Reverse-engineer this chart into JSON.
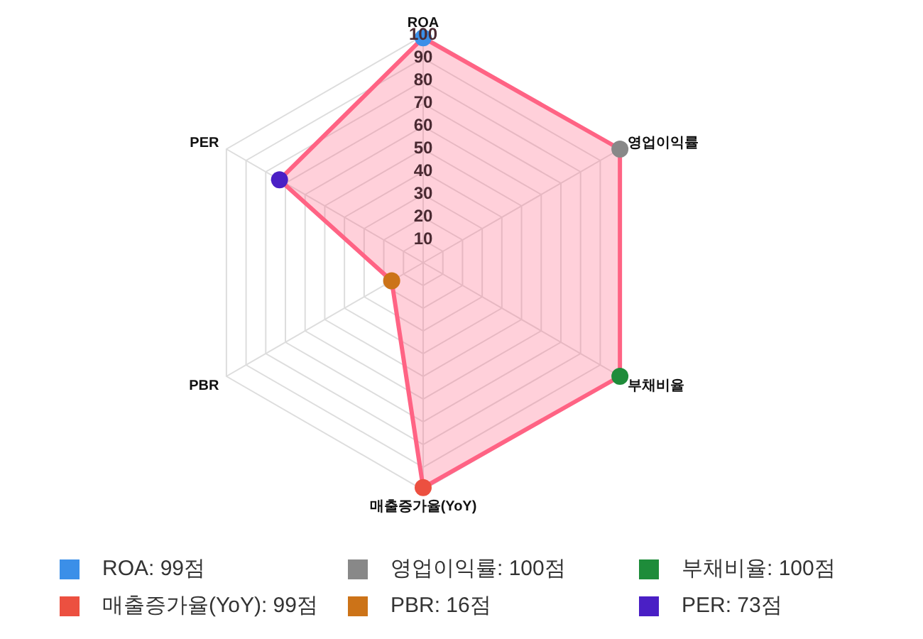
{
  "chart_data": {
    "type": "radar",
    "categories": [
      "ROA",
      "영업이익률",
      "부채비율",
      "매출증가율(YoY)",
      "PBR",
      "PER"
    ],
    "series": [
      {
        "color": "#ff6384",
        "colors": [
          "#3b8fe8",
          "#888888",
          "#1e8c3a",
          "#ec5040",
          "#cc7318",
          "#4a1fc5"
        ],
        "values": [
          99,
          100,
          100,
          99,
          16,
          73
        ]
      }
    ],
    "annotations": [
      "ROA: 99점",
      "영업이익률: 100점",
      "부채비율: 100점",
      "매출증가율(YoY): 99점",
      "PBR: 16점",
      "PER: 73점"
    ],
    "ylim": [
      0,
      100
    ],
    "yticks": [
      10,
      20,
      30,
      40,
      50,
      60,
      70,
      80,
      90,
      100
    ],
    "grid": true,
    "marker": "circle"
  }
}
